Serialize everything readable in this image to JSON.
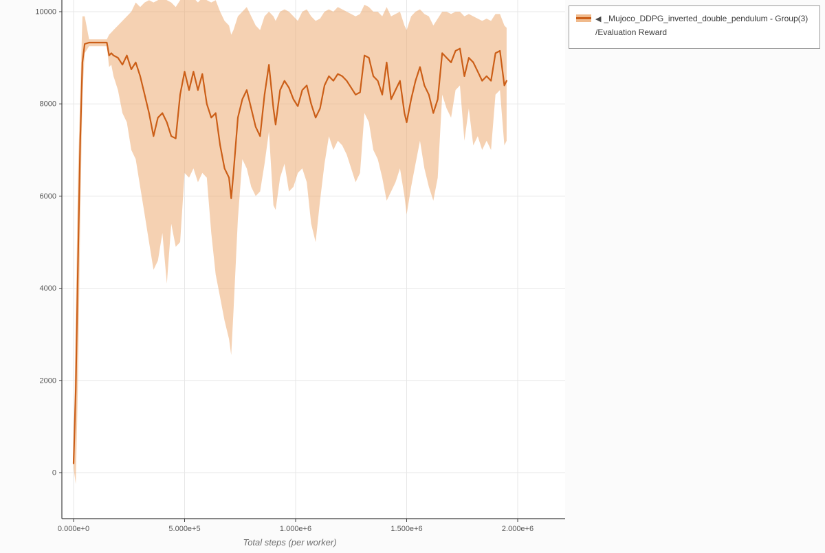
{
  "legend": {
    "collapse_icon": "◀",
    "series_label": "_Mujoco_DDPG_inverted_double_pendulum - Group(3)",
    "metric_label": "/Evaluation Reward"
  },
  "colors": {
    "line": "#cb5e17",
    "band": "#eba365",
    "axis": "#3f3f3f",
    "grid": "#e7e7e7",
    "tick_text": "#555555"
  },
  "chart_data": {
    "type": "line",
    "title": "",
    "xlabel": "Total steps (per worker)",
    "ylabel": "",
    "xlim": [
      0,
      2000000
    ],
    "ylim": [
      -1000,
      10270
    ],
    "grid": true,
    "legend_position": "top-right",
    "xticks": {
      "values": [
        0,
        500000,
        1000000,
        1500000,
        2000000
      ],
      "labels": [
        "0.000e+0",
        "5.000e+5",
        "1.000e+6",
        "1.500e+6",
        "2.000e+6"
      ]
    },
    "yticks": {
      "values": [
        0,
        2000,
        4000,
        6000,
        8000,
        10000
      ],
      "labels": [
        "0",
        "2000",
        "4000",
        "6000",
        "8000",
        "10000"
      ]
    },
    "series": [
      {
        "name": "_Mujoco_DDPG_inverted_double_pendulum - Group(3)/Evaluation Reward",
        "color": "#cb5e17",
        "band_color": "#eba365",
        "x": [
          0,
          10000,
          20000,
          30000,
          40000,
          50000,
          70000,
          90000,
          110000,
          130000,
          150000,
          160000,
          170000,
          180000,
          200000,
          220000,
          240000,
          260000,
          280000,
          300000,
          320000,
          340000,
          360000,
          380000,
          400000,
          420000,
          440000,
          460000,
          480000,
          500000,
          520000,
          540000,
          560000,
          580000,
          600000,
          620000,
          640000,
          660000,
          680000,
          700000,
          710000,
          720000,
          740000,
          760000,
          780000,
          800000,
          820000,
          840000,
          860000,
          880000,
          900000,
          910000,
          930000,
          950000,
          970000,
          990000,
          1010000,
          1030000,
          1050000,
          1070000,
          1090000,
          1110000,
          1130000,
          1150000,
          1170000,
          1190000,
          1210000,
          1230000,
          1250000,
          1270000,
          1290000,
          1310000,
          1330000,
          1350000,
          1370000,
          1390000,
          1410000,
          1430000,
          1450000,
          1470000,
          1490000,
          1500000,
          1520000,
          1540000,
          1560000,
          1580000,
          1600000,
          1620000,
          1640000,
          1660000,
          1680000,
          1700000,
          1720000,
          1740000,
          1760000,
          1780000,
          1800000,
          1820000,
          1840000,
          1860000,
          1880000,
          1900000,
          1920000,
          1940000,
          1950000
        ],
        "mean": [
          200,
          1800,
          4600,
          7200,
          8900,
          9300,
          9330,
          9330,
          9330,
          9330,
          9330,
          9050,
          9100,
          9050,
          9000,
          8850,
          9050,
          8750,
          8900,
          8600,
          8200,
          7800,
          7300,
          7700,
          7800,
          7600,
          7300,
          7250,
          8200,
          8700,
          8300,
          8700,
          8300,
          8650,
          8000,
          7700,
          7800,
          7100,
          6600,
          6400,
          5950,
          6500,
          7700,
          8100,
          8300,
          7900,
          7500,
          7300,
          8200,
          8850,
          7900,
          7550,
          8300,
          8500,
          8350,
          8100,
          7950,
          8300,
          8400,
          8000,
          7700,
          7900,
          8400,
          8600,
          8500,
          8650,
          8600,
          8500,
          8350,
          8200,
          8250,
          9050,
          9000,
          8600,
          8500,
          8200,
          8900,
          8100,
          8300,
          8500,
          7800,
          7600,
          8100,
          8500,
          8800,
          8400,
          8200,
          7800,
          8100,
          9100,
          9000,
          8900,
          9150,
          9200,
          8600,
          9000,
          8900,
          8700,
          8500,
          8600,
          8500,
          9100,
          9150,
          8400,
          8500
        ],
        "lower": [
          100,
          -250,
          2000,
          5500,
          8200,
          9100,
          9250,
          9250,
          9250,
          9250,
          9250,
          8800,
          8850,
          8600,
          8300,
          7800,
          7600,
          7000,
          6800,
          6200,
          5600,
          5000,
          4400,
          4600,
          5200,
          4100,
          5400,
          4900,
          5000,
          6500,
          6400,
          6600,
          6300,
          6500,
          6400,
          5200,
          4300,
          3800,
          3300,
          2900,
          2550,
          3500,
          5500,
          6800,
          6600,
          6200,
          6000,
          6100,
          6700,
          7400,
          5800,
          5700,
          6400,
          6700,
          6100,
          6200,
          6500,
          6600,
          6300,
          5400,
          5000,
          5900,
          6700,
          7300,
          7000,
          7200,
          7100,
          6900,
          6600,
          6300,
          6500,
          7800,
          7600,
          7000,
          6800,
          6400,
          5900,
          6100,
          6300,
          6600,
          6000,
          5600,
          6200,
          6700,
          7200,
          6600,
          6200,
          5900,
          6400,
          8200,
          7900,
          7700,
          8300,
          8400,
          7200,
          7900,
          7100,
          7300,
          7000,
          7200,
          7000,
          8200,
          8300,
          7100,
          7200
        ],
        "upper": [
          300,
          3300,
          6500,
          8200,
          9900,
          9900,
          9400,
          9400,
          9400,
          9400,
          9400,
          9500,
          9550,
          9600,
          9700,
          9800,
          9900,
          10000,
          10200,
          10100,
          10200,
          10250,
          10200,
          10250,
          10300,
          10250,
          10200,
          10100,
          10250,
          10300,
          10250,
          10300,
          10200,
          10300,
          10250,
          10200,
          10250,
          10000,
          9800,
          9700,
          9500,
          9600,
          9900,
          10000,
          10100,
          9900,
          9700,
          9600,
          9900,
          10000,
          9900,
          9800,
          10000,
          10050,
          10000,
          9900,
          9800,
          10000,
          10050,
          9900,
          9800,
          9850,
          10000,
          10050,
          10000,
          10100,
          10050,
          10000,
          9950,
          9900,
          9950,
          10150,
          10100,
          10000,
          10000,
          9900,
          10100,
          9900,
          9950,
          10000,
          9700,
          9600,
          9900,
          10000,
          10050,
          9950,
          9900,
          9700,
          9850,
          10000,
          10000,
          9950,
          10000,
          10000,
          9900,
          9950,
          9900,
          9850,
          9800,
          9850,
          9800,
          9950,
          9950,
          9700,
          9650
        ]
      }
    ]
  }
}
